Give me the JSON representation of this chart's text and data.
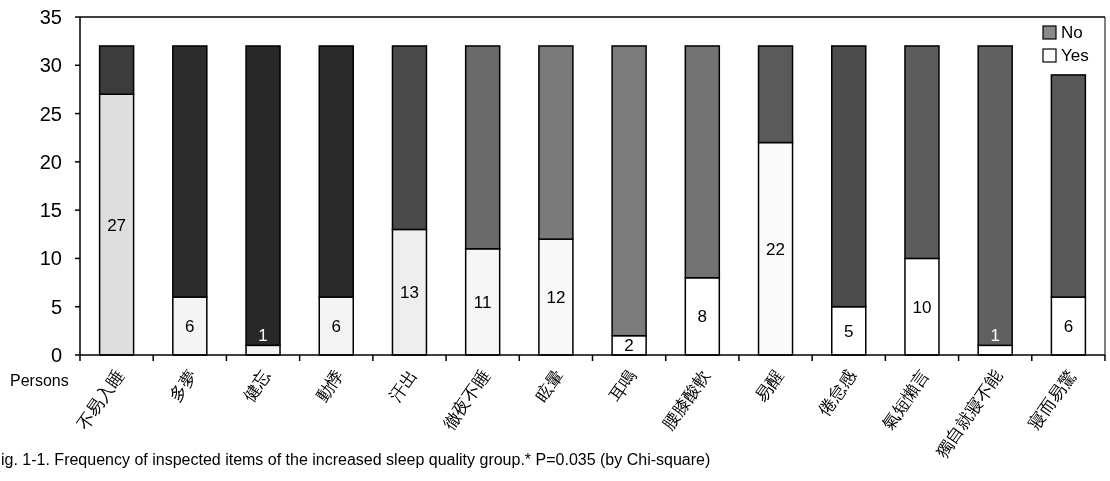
{
  "chart_data": {
    "type": "bar",
    "stacked": true,
    "ylabel": "Persons",
    "categories": [
      "不易入睡",
      "多夢",
      "健忘",
      "動悸",
      "汗出",
      "徹夜不睡",
      "眩暈",
      "耳鳴",
      "腰膝酸軟",
      "易醒",
      "倦怠感",
      "氣短懶言",
      "獨自就寢不能",
      "寢而易驚"
    ],
    "series": [
      {
        "name": "Yes",
        "color": "#ffffff",
        "colors": [
          "#dedede",
          "#f4f4f4",
          "#f4f4f4",
          "#f4f4f4",
          "#eeeeee",
          "#f6f6f6",
          "#f8f8f8",
          "#ffffff",
          "#ffffff",
          "#fafafa",
          "#ffffff",
          "#ffffff",
          "#ffffff",
          "#ffffff"
        ],
        "values": [
          27,
          6,
          1,
          6,
          13,
          11,
          12,
          2,
          8,
          22,
          5,
          10,
          1,
          6
        ],
        "value_labels": [
          "27",
          "6",
          "1",
          "6",
          "13",
          "11",
          "12",
          "2",
          "8",
          "22",
          "5",
          "10",
          "1",
          "6"
        ]
      },
      {
        "name": "No",
        "color": "#8a8a8a",
        "colors": [
          "#3c3c3c",
          "#2c2c2c",
          "#282828",
          "#2a2a2a",
          "#4a4a4a",
          "#6a6a6a",
          "#7a7a7a",
          "#7c7c7c",
          "#727272",
          "#5a5a5a",
          "#4c4c4c",
          "#5c5c5c",
          "#606060",
          "#585858"
        ],
        "values": [
          5,
          26,
          31,
          26,
          19,
          21,
          20,
          30,
          24,
          10,
          27,
          22,
          31,
          23
        ]
      }
    ],
    "ylim": [
      0,
      35
    ],
    "yticks": [
      0,
      5,
      10,
      15,
      20,
      25,
      30,
      35
    ],
    "legend": "top right",
    "grid": false,
    "annotations": [
      "ig. 1-1. Frequency of inspected items of the increased sleep quality group.* P=0.035 (by Chi-square)"
    ]
  }
}
